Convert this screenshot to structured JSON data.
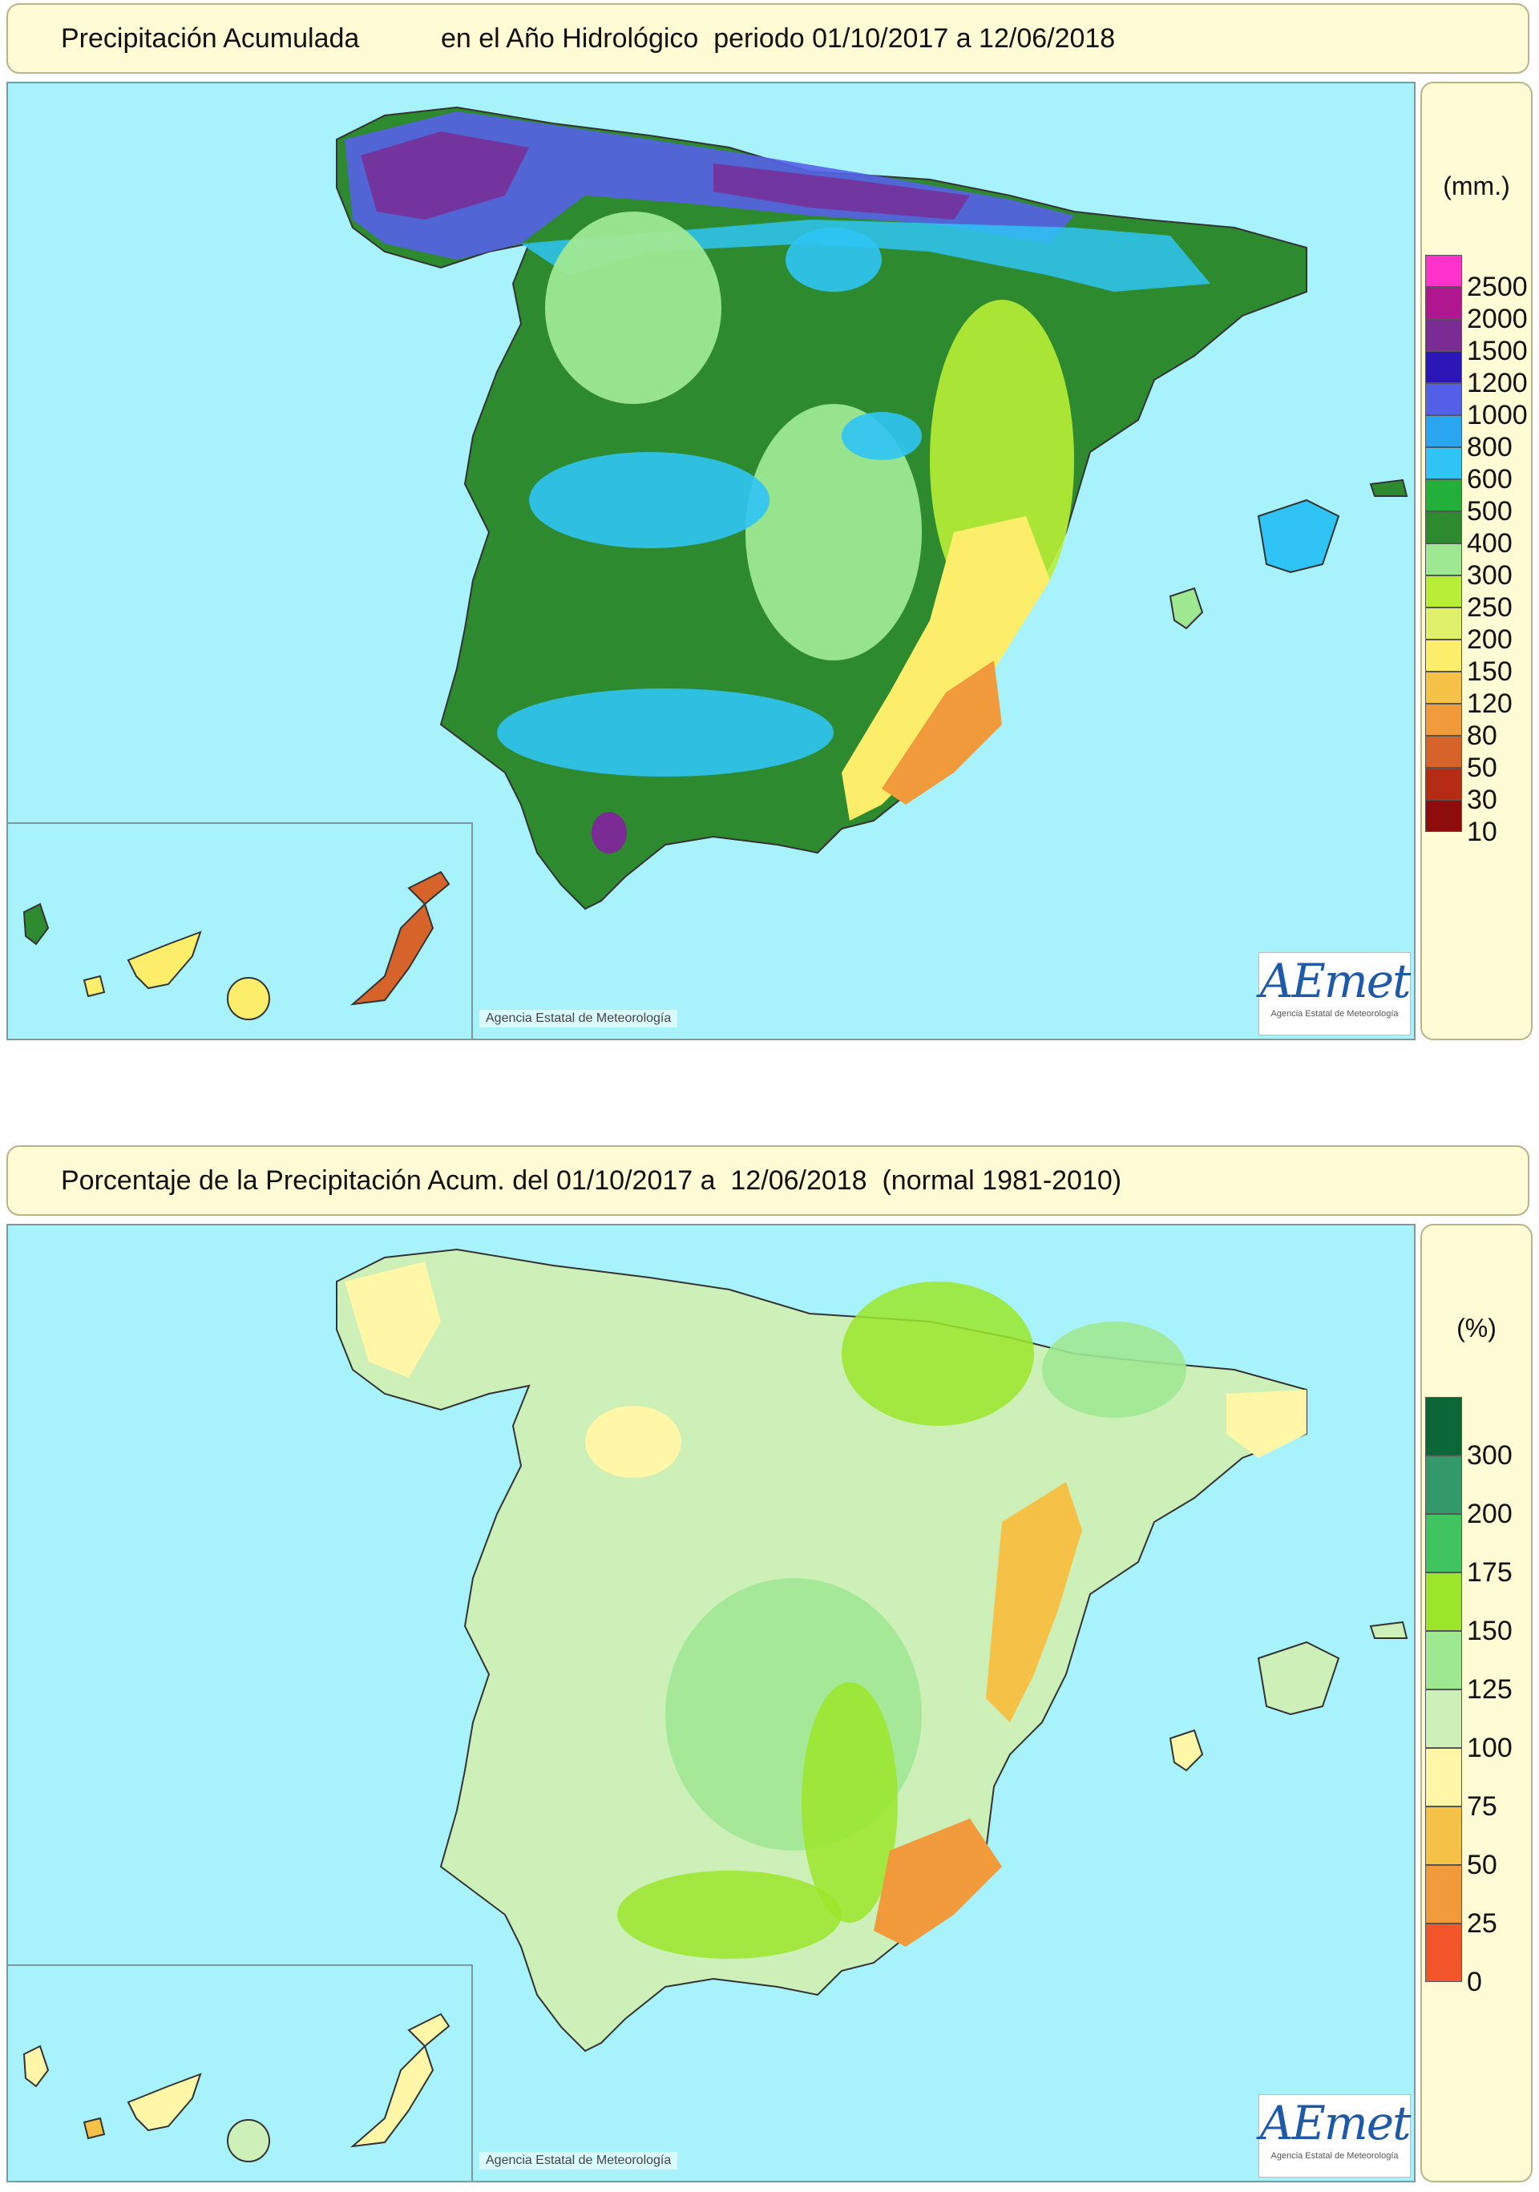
{
  "panels": [
    {
      "title_left": "Precipitación Acumulada",
      "title_right": "en el Año Hidrológico  periodo 01/10/2017 a 12/06/2018",
      "legend": {
        "unit": "(mm.)",
        "labels": [
          "2500",
          "2000",
          "1500",
          "1200",
          "1000",
          "800",
          "600",
          "500",
          "400",
          "300",
          "250",
          "200",
          "150",
          "120",
          "80",
          "50",
          "30",
          "10"
        ],
        "colors": [
          "#ff33cc",
          "#b0168f",
          "#7a2b94",
          "#2b17b8",
          "#5560e8",
          "#2aa5f0",
          "#2fc4f5",
          "#22b03a",
          "#2e8a2e",
          "#9ee892",
          "#b8ee36",
          "#dff06a",
          "#fcee6a",
          "#f5c247",
          "#f09a3c",
          "#d6642a",
          "#b52b14",
          "#8e0c0c"
        ]
      },
      "credit": "Agencia Estatal de Meteorología",
      "logo": "AEmet",
      "logo_sub": "Agencia Estatal de Meteorología",
      "map": {
        "sea": "#a8f3fb",
        "land_base": "#2e8a2e",
        "north_band": "#2b17b8",
        "wet_spots": "#2fc4f5",
        "dry_southeast": "#f09a3c"
      }
    },
    {
      "title_left": "Porcentaje de la Precipitación Acum. del 01/10/2017 a  12/06/2018  (normal 1981-2010)",
      "title_right": "",
      "legend": {
        "unit": "(%)",
        "labels": [
          "300",
          "200",
          "175",
          "150",
          "125",
          "100",
          "75",
          "50",
          "25",
          "0"
        ],
        "colors": [
          "#0b6638",
          "#33996a",
          "#3fc460",
          "#9be62a",
          "#9ee892",
          "#ccf0b8",
          "#fff6a8",
          "#f5c247",
          "#f09a3c",
          "#f2562a"
        ]
      },
      "credit": "Agencia Estatal de Meteorología",
      "logo": "AEmet",
      "logo_sub": "Agencia Estatal de Meteorología",
      "map": {
        "sea": "#a8f3fb",
        "land_base": "#ccf0b8",
        "wet_areas": "#9ee892",
        "dry_coast": "#f5c247",
        "very_dry": "#f09a3c"
      }
    }
  ]
}
